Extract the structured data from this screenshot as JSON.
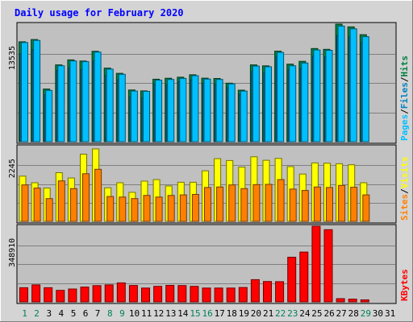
{
  "chart_data": {
    "type": "bar",
    "title": "Daily usage for February 2020",
    "days": [
      "1",
      "2",
      "3",
      "4",
      "5",
      "6",
      "7",
      "8",
      "9",
      "10",
      "11",
      "12",
      "13",
      "14",
      "15",
      "16",
      "17",
      "18",
      "19",
      "20",
      "21",
      "22",
      "23",
      "24",
      "25",
      "26",
      "27",
      "28",
      "29",
      "30",
      "31"
    ],
    "weekend_days": [
      "1",
      "2",
      "8",
      "9",
      "15",
      "16",
      "22",
      "23",
      "29"
    ],
    "colors": {
      "hits": "#008040",
      "files": "#0080c0",
      "pages": "#00c0ff",
      "visits": "#ffff00",
      "sites": "#ff8000",
      "kbytes": "#ff0000",
      "title": "#0000ff",
      "weekday": "#000000",
      "weekend": "#00805c",
      "panel": "#c0c0c0",
      "background": "#d4d4d4"
    },
    "panels": [
      {
        "id": "hits",
        "tick_label": "13535",
        "tick_value": 13535,
        "ymax": 17180,
        "legend": [
          {
            "text": "Pages",
            "color": "#00c0ff"
          },
          {
            "text": "/",
            "color": "#000000"
          },
          {
            "text": "Files",
            "color": "#0080c0"
          },
          {
            "text": "/",
            "color": "#000000"
          },
          {
            "text": "Hits",
            "color": "#008040"
          }
        ],
        "series": [
          {
            "name": "Hits",
            "color": "#008040",
            "values": [
              14600,
              14930,
              7690,
              11230,
              11950,
              11790,
              13220,
              10750,
              9990,
              7560,
              7420,
              9130,
              9270,
              9420,
              9780,
              9280,
              9240,
              8560,
              7530,
              11230,
              11090,
              13240,
              11330,
              11740,
              13620,
              13500,
              17180,
              16780,
              15640,
              0,
              0
            ]
          },
          {
            "name": "Files",
            "color": "#0080c0",
            "values": [
              12830,
              13460,
              6850,
              10410,
              10790,
              10540,
              11810,
              9710,
              9040,
              6520,
              6380,
              8390,
              8310,
              8770,
              9010,
              8560,
              8450,
              7870,
              6920,
              10250,
              10040,
              12370,
              10450,
              10680,
              12510,
              12420,
              15530,
              15310,
              14480,
              0,
              0
            ]
          },
          {
            "name": "Pages",
            "color": "#00c0ff",
            "values": [
              14500,
              14800,
              7500,
              11100,
              11800,
              11700,
              13100,
              10600,
              9850,
              7400,
              7350,
              9000,
              9100,
              9250,
              9650,
              9150,
              9100,
              8450,
              7400,
              11050,
              10950,
              13050,
              11100,
              11500,
              13400,
              13350,
              16900,
              16500,
              15350,
              0,
              0
            ]
          }
        ]
      },
      {
        "id": "visits",
        "tick_label": "2245",
        "tick_value": 2245,
        "ymax": 2830,
        "legend": [
          {
            "text": "Sites",
            "color": "#ff8000"
          },
          {
            "text": "/",
            "color": "#000000"
          },
          {
            "text": "Visits",
            "color": "#ffff00"
          }
        ],
        "series": [
          {
            "name": "Visits",
            "color": "#ffff00",
            "values": [
              1710,
              1460,
              1260,
              1840,
              1640,
              2540,
              2740,
              1270,
              1460,
              1100,
              1520,
              1580,
              1340,
              1480,
              1480,
              1910,
              2370,
              2300,
              2050,
              2440,
              2310,
              2380,
              2070,
              1790,
              2210,
              2200,
              2180,
              2140,
              1460,
              0,
              0
            ]
          },
          {
            "name": "Sites",
            "color": "#ff8000",
            "values": [
              1380,
              1260,
              860,
              1530,
              1240,
              1800,
              1970,
              940,
              920,
              860,
              980,
              920,
              980,
              1000,
              1020,
              1280,
              1300,
              1380,
              1240,
              1390,
              1400,
              1580,
              1220,
              1170,
              1300,
              1280,
              1360,
              1290,
              1000,
              0,
              0
            ]
          }
        ]
      },
      {
        "id": "kbytes",
        "tick_label": "348910",
        "tick_value": 348910,
        "ymax": 436100,
        "legend": [
          {
            "text": "KBytes",
            "color": "#ff0000"
          }
        ],
        "series": [
          {
            "name": "KBytes",
            "color": "#ff0000",
            "values": [
              81600,
              97700,
              81600,
              66500,
              74400,
              85300,
              93700,
              97700,
              109700,
              94600,
              79600,
              89500,
              95100,
              94400,
              89500,
              79600,
              79600,
              79600,
              83200,
              128200,
              117500,
              116600,
              257300,
              287300,
              436100,
              416000,
              18500,
              15800,
              11700,
              0,
              0
            ]
          }
        ]
      }
    ]
  }
}
